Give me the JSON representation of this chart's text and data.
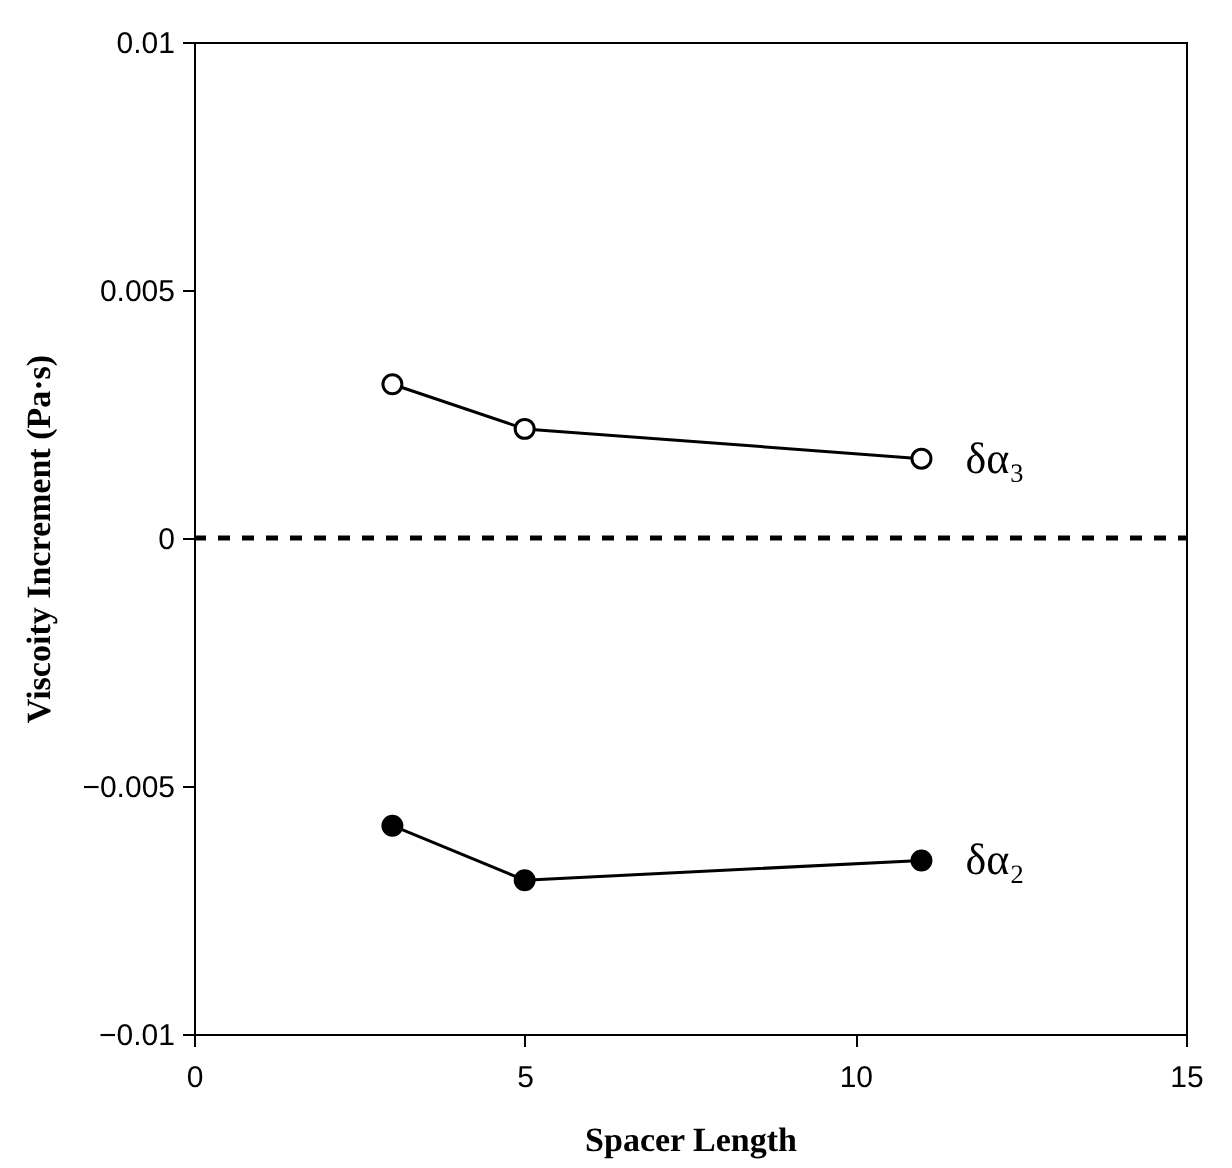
{
  "chart_data": {
    "type": "line",
    "xlabel": "Spacer Length",
    "ylabel": "Viscoity Increment (Pa·s)",
    "xlim": [
      0,
      15
    ],
    "xticks": [
      0,
      5,
      10,
      15
    ],
    "ylim": [
      -0.01,
      0.01
    ],
    "yticks": [
      -0.01,
      -0.005,
      0,
      0.005,
      0.01
    ],
    "x": [
      3,
      5,
      11
    ],
    "marker": "circle",
    "line_style": "solid",
    "grid": false,
    "legend": false,
    "series": [
      {
        "name": "δα₃",
        "color": "#000000",
        "values": [
          0.0031,
          0.0022,
          0.0016
        ]
      },
      {
        "name": "δα₂",
        "color": "#000000",
        "values": [
          -0.0058,
          -0.0069,
          -0.0065
        ]
      }
    ],
    "ref_lines": [
      {
        "axis": "y",
        "value": 0,
        "line_style": "dashed",
        "color": "#000000"
      }
    ]
  }
}
